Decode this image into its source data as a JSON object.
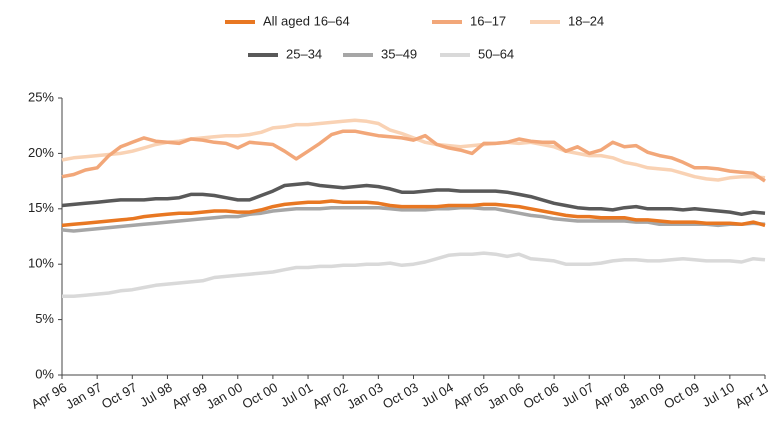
{
  "chart_data": {
    "type": "line",
    "categories": [
      "Apr 96",
      null,
      null,
      "Jan 97",
      null,
      null,
      "Oct 97",
      null,
      null,
      "Jul 98",
      null,
      null,
      "Apr 99",
      null,
      null,
      "Jan 00",
      null,
      null,
      "Oct 00",
      null,
      null,
      "Jul 01",
      null,
      null,
      "Apr 02",
      null,
      null,
      "Jan 03",
      null,
      null,
      "Oct 03",
      null,
      null,
      "Jul 04",
      null,
      null,
      "Apr 05",
      null,
      null,
      "Jan 06",
      null,
      null,
      "Oct 06",
      null,
      null,
      "Jul 07",
      null,
      null,
      "Apr 08",
      null,
      null,
      "Jan 09",
      null,
      null,
      "Oct 09",
      null,
      null,
      "Jul 10",
      null,
      null,
      "Apr 11"
    ],
    "series": [
      {
        "name": "All aged 16–64",
        "color": "#e87722",
        "values": [
          13.5,
          13.6,
          13.7,
          13.8,
          13.9,
          14.0,
          14.1,
          14.3,
          14.4,
          14.5,
          14.6,
          14.6,
          14.7,
          14.8,
          14.8,
          14.7,
          14.7,
          14.9,
          15.2,
          15.4,
          15.5,
          15.6,
          15.6,
          15.7,
          15.6,
          15.6,
          15.6,
          15.5,
          15.3,
          15.2,
          15.2,
          15.2,
          15.2,
          15.3,
          15.3,
          15.3,
          15.4,
          15.4,
          15.3,
          15.2,
          15.0,
          14.8,
          14.6,
          14.4,
          14.3,
          14.3,
          14.2,
          14.2,
          14.2,
          14.0,
          14.0,
          13.9,
          13.8,
          13.8,
          13.8,
          13.7,
          13.7,
          13.7,
          13.6,
          13.8,
          13.5
        ]
      },
      {
        "name": "16–17",
        "color": "#f2a779",
        "values": [
          17.9,
          18.1,
          18.5,
          18.7,
          19.8,
          20.6,
          21.0,
          21.4,
          21.1,
          21.0,
          20.9,
          21.3,
          21.2,
          21.0,
          20.9,
          20.5,
          21.0,
          20.9,
          20.8,
          20.2,
          19.5,
          20.2,
          20.9,
          21.7,
          22.0,
          22.0,
          21.8,
          21.6,
          21.5,
          21.4,
          21.2,
          21.6,
          20.8,
          20.5,
          20.3,
          20.0,
          20.9,
          20.9,
          21.0,
          21.3,
          21.1,
          21.0,
          21.0,
          20.2,
          20.6,
          20.0,
          20.3,
          21.0,
          20.6,
          20.7,
          20.1,
          19.8,
          19.6,
          19.2,
          18.7,
          18.7,
          18.6,
          18.4,
          18.3,
          18.2,
          17.5
        ]
      },
      {
        "name": "18–24",
        "color": "#f9d2b4",
        "values": [
          19.4,
          19.6,
          19.7,
          19.8,
          19.9,
          20.0,
          20.2,
          20.5,
          20.8,
          21.0,
          21.1,
          21.3,
          21.4,
          21.5,
          21.6,
          21.6,
          21.7,
          21.9,
          22.3,
          22.4,
          22.6,
          22.6,
          22.7,
          22.8,
          22.9,
          23.0,
          22.9,
          22.7,
          22.1,
          21.8,
          21.4,
          21.0,
          20.8,
          20.7,
          20.6,
          20.7,
          20.8,
          20.9,
          21.0,
          20.9,
          21.0,
          20.8,
          20.6,
          20.2,
          20.0,
          19.8,
          19.8,
          19.6,
          19.2,
          19.0,
          18.7,
          18.6,
          18.5,
          18.2,
          17.9,
          17.7,
          17.6,
          17.8,
          17.9,
          17.9,
          17.8
        ]
      },
      {
        "name": "25–34",
        "color": "#595959",
        "values": [
          15.3,
          15.4,
          15.5,
          15.6,
          15.7,
          15.8,
          15.8,
          15.8,
          15.9,
          15.9,
          16.0,
          16.3,
          16.3,
          16.2,
          16.0,
          15.8,
          15.8,
          16.2,
          16.6,
          17.1,
          17.2,
          17.3,
          17.1,
          17.0,
          16.9,
          17.0,
          17.1,
          17.0,
          16.8,
          16.5,
          16.5,
          16.6,
          16.7,
          16.7,
          16.6,
          16.6,
          16.6,
          16.6,
          16.5,
          16.3,
          16.1,
          15.8,
          15.5,
          15.3,
          15.1,
          15.0,
          15.0,
          14.9,
          15.1,
          15.2,
          15.0,
          15.0,
          15.0,
          14.9,
          15.0,
          14.9,
          14.8,
          14.7,
          14.5,
          14.7,
          14.6
        ]
      },
      {
        "name": "35–49",
        "color": "#a6a6a6",
        "values": [
          13.1,
          13.0,
          13.1,
          13.2,
          13.3,
          13.4,
          13.5,
          13.6,
          13.7,
          13.8,
          13.9,
          14.0,
          14.1,
          14.2,
          14.3,
          14.3,
          14.5,
          14.6,
          14.8,
          14.9,
          15.0,
          15.0,
          15.0,
          15.1,
          15.1,
          15.1,
          15.1,
          15.1,
          15.0,
          14.9,
          14.9,
          14.9,
          15.0,
          15.0,
          15.1,
          15.1,
          15.0,
          15.0,
          14.8,
          14.6,
          14.4,
          14.3,
          14.1,
          14.0,
          13.9,
          13.9,
          13.9,
          13.9,
          13.9,
          13.8,
          13.8,
          13.6,
          13.6,
          13.6,
          13.6,
          13.6,
          13.5,
          13.6,
          13.6,
          13.7,
          13.6
        ]
      },
      {
        "name": "50–64",
        "color": "#d9d9d9",
        "values": [
          7.1,
          7.1,
          7.2,
          7.3,
          7.4,
          7.6,
          7.7,
          7.9,
          8.1,
          8.2,
          8.3,
          8.4,
          8.5,
          8.8,
          8.9,
          9.0,
          9.1,
          9.2,
          9.3,
          9.5,
          9.7,
          9.7,
          9.8,
          9.8,
          9.9,
          9.9,
          10.0,
          10.0,
          10.1,
          9.9,
          10.0,
          10.2,
          10.5,
          10.8,
          10.9,
          10.9,
          11.0,
          10.9,
          10.7,
          10.9,
          10.5,
          10.4,
          10.3,
          10.0,
          10.0,
          10.0,
          10.1,
          10.3,
          10.4,
          10.4,
          10.3,
          10.3,
          10.4,
          10.5,
          10.4,
          10.3,
          10.3,
          10.3,
          10.2,
          10.5,
          10.4
        ]
      }
    ],
    "ylim": [
      0,
      25
    ],
    "yticks": [
      {
        "value": 0,
        "label": "0%"
      },
      {
        "value": 5,
        "label": "5%"
      },
      {
        "value": 10,
        "label": "10%"
      },
      {
        "value": 15,
        "label": "15%"
      },
      {
        "value": 20,
        "label": "20%"
      },
      {
        "value": 25,
        "label": "25%"
      }
    ],
    "grid": false,
    "legend": "top"
  }
}
